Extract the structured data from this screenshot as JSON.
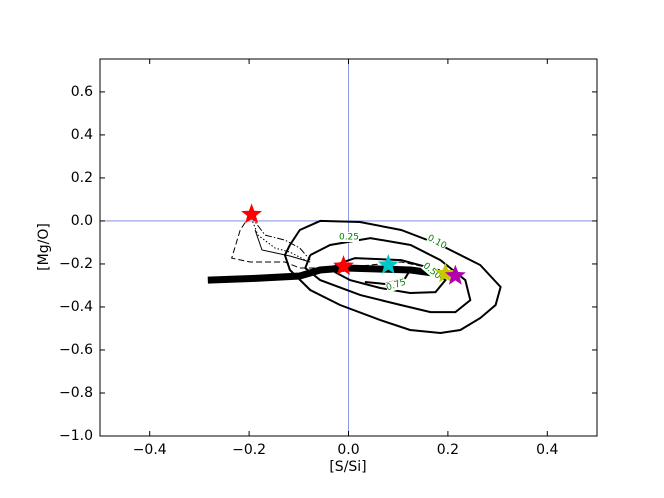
{
  "chart_data": {
    "type": "scatter",
    "xlabel": "[S/Si]",
    "ylabel": "[Mg/O]",
    "xlim": [
      -0.5,
      0.5
    ],
    "ylim": [
      -1.0,
      0.753
    ],
    "xticks": [
      {
        "value": -0.4,
        "label": "−0.4"
      },
      {
        "value": -0.2,
        "label": "−0.2"
      },
      {
        "value": 0,
        "label": "0.0"
      },
      {
        "value": 0.2,
        "label": "0.2"
      },
      {
        "value": 0.4,
        "label": "0.4"
      }
    ],
    "yticks": [
      {
        "value": -1.0,
        "label": "−1.0"
      },
      {
        "value": -0.8,
        "label": "−0.8"
      },
      {
        "value": -0.6,
        "label": "−0.6"
      },
      {
        "value": -0.4,
        "label": "−0.4"
      },
      {
        "value": -0.2,
        "label": "−0.2"
      },
      {
        "value": 0,
        "label": "0.0"
      },
      {
        "value": 0.2,
        "label": "0.2"
      },
      {
        "value": 0.4,
        "label": "0.4"
      },
      {
        "value": 0.6,
        "label": "0.6"
      }
    ],
    "reference_lines": {
      "x": 0,
      "y": 0,
      "color": "#7080e0"
    },
    "contours": [
      {
        "label": "0.10",
        "color": "#000000",
        "x": [
          -0.118,
          -0.098,
          -0.057,
          0.023,
          0.106,
          0.185,
          0.265,
          0.306,
          0.296,
          0.265,
          0.225,
          0.185,
          0.124,
          0.064,
          -0.017,
          -0.077,
          -0.118,
          -0.128,
          -0.118
        ],
        "y": [
          -0.112,
          -0.042,
          0.0,
          -0.005,
          -0.042,
          -0.112,
          -0.205,
          -0.307,
          -0.391,
          -0.452,
          -0.507,
          -0.521,
          -0.507,
          -0.461,
          -0.391,
          -0.321,
          -0.228,
          -0.159,
          -0.112
        ]
      },
      {
        "label": "0.25",
        "color": "#000000",
        "x": [
          -0.077,
          -0.037,
          0.044,
          0.125,
          0.185,
          0.235,
          0.245,
          0.215,
          0.165,
          0.105,
          0.024,
          -0.057,
          -0.087,
          -0.077
        ],
        "y": [
          -0.159,
          -0.112,
          -0.08,
          -0.112,
          -0.182,
          -0.275,
          -0.368,
          -0.424,
          -0.424,
          -0.391,
          -0.345,
          -0.275,
          -0.219,
          -0.159
        ]
      },
      {
        "label": "0.50",
        "color": "#000000",
        "x": [
          -0.027,
          0.013,
          0.106,
          0.165,
          0.195,
          0.175,
          0.124,
          0.064,
          0.003,
          -0.027,
          -0.027
        ],
        "y": [
          -0.205,
          -0.173,
          -0.182,
          -0.219,
          -0.275,
          -0.331,
          -0.335,
          -0.312,
          -0.275,
          -0.238,
          -0.205
        ]
      },
      {
        "label": "0.75",
        "color": "#000000",
        "x": [
          0.033,
          0.074,
          0.114,
          0.124
        ],
        "y": [
          -0.284,
          -0.293,
          -0.266,
          -0.228
        ]
      }
    ],
    "contour_label_color": "#008000",
    "lines": [
      {
        "style": "dashed",
        "width": 1,
        "color": "#000000",
        "x": [
          -0.198,
          -0.218,
          -0.235,
          -0.198,
          -0.128,
          -0.098,
          -0.017,
          0.106,
          0.185
        ],
        "y": [
          0.027,
          -0.042,
          -0.173,
          -0.191,
          -0.191,
          -0.219,
          -0.219,
          -0.191,
          -0.228
        ]
      },
      {
        "style": "dotted",
        "width": 1,
        "color": "#000000",
        "x": [
          -0.198,
          -0.182,
          -0.148,
          -0.118,
          -0.087
        ],
        "y": [
          0.027,
          -0.066,
          -0.126,
          -0.145,
          -0.182
        ]
      },
      {
        "style": "dashdot",
        "width": 1,
        "color": "#000000",
        "x": [
          -0.198,
          -0.168,
          -0.128,
          -0.098,
          -0.077
        ],
        "y": [
          0.027,
          -0.066,
          -0.089,
          -0.126,
          -0.182
        ]
      },
      {
        "style": "solid",
        "width": 1,
        "color": "#000000",
        "x": [
          -0.188,
          -0.174,
          -0.118,
          -0.077
        ],
        "y": [
          -0.042,
          -0.135,
          -0.163,
          -0.191
        ]
      },
      {
        "style": "solid",
        "width": 7,
        "color": "#000000",
        "x": [
          -0.283,
          -0.188,
          -0.098,
          -0.057,
          -0.007,
          0.043,
          0.125,
          0.195
        ],
        "y": [
          -0.275,
          -0.267,
          -0.256,
          -0.228,
          -0.219,
          -0.222,
          -0.228,
          -0.25
        ]
      }
    ],
    "series": [
      {
        "color": "#ff0000",
        "x": [
          -0.195,
          -0.01
        ],
        "y": [
          0.03,
          -0.21
        ]
      },
      {
        "color": "#00c8c8",
        "x": [
          0.08
        ],
        "y": [
          -0.205
        ]
      },
      {
        "color": "#c8c800",
        "x": [
          0.195
        ],
        "y": [
          -0.245
        ]
      },
      {
        "color": "#b000b0",
        "x": [
          0.215
        ],
        "y": [
          -0.255
        ]
      }
    ]
  }
}
